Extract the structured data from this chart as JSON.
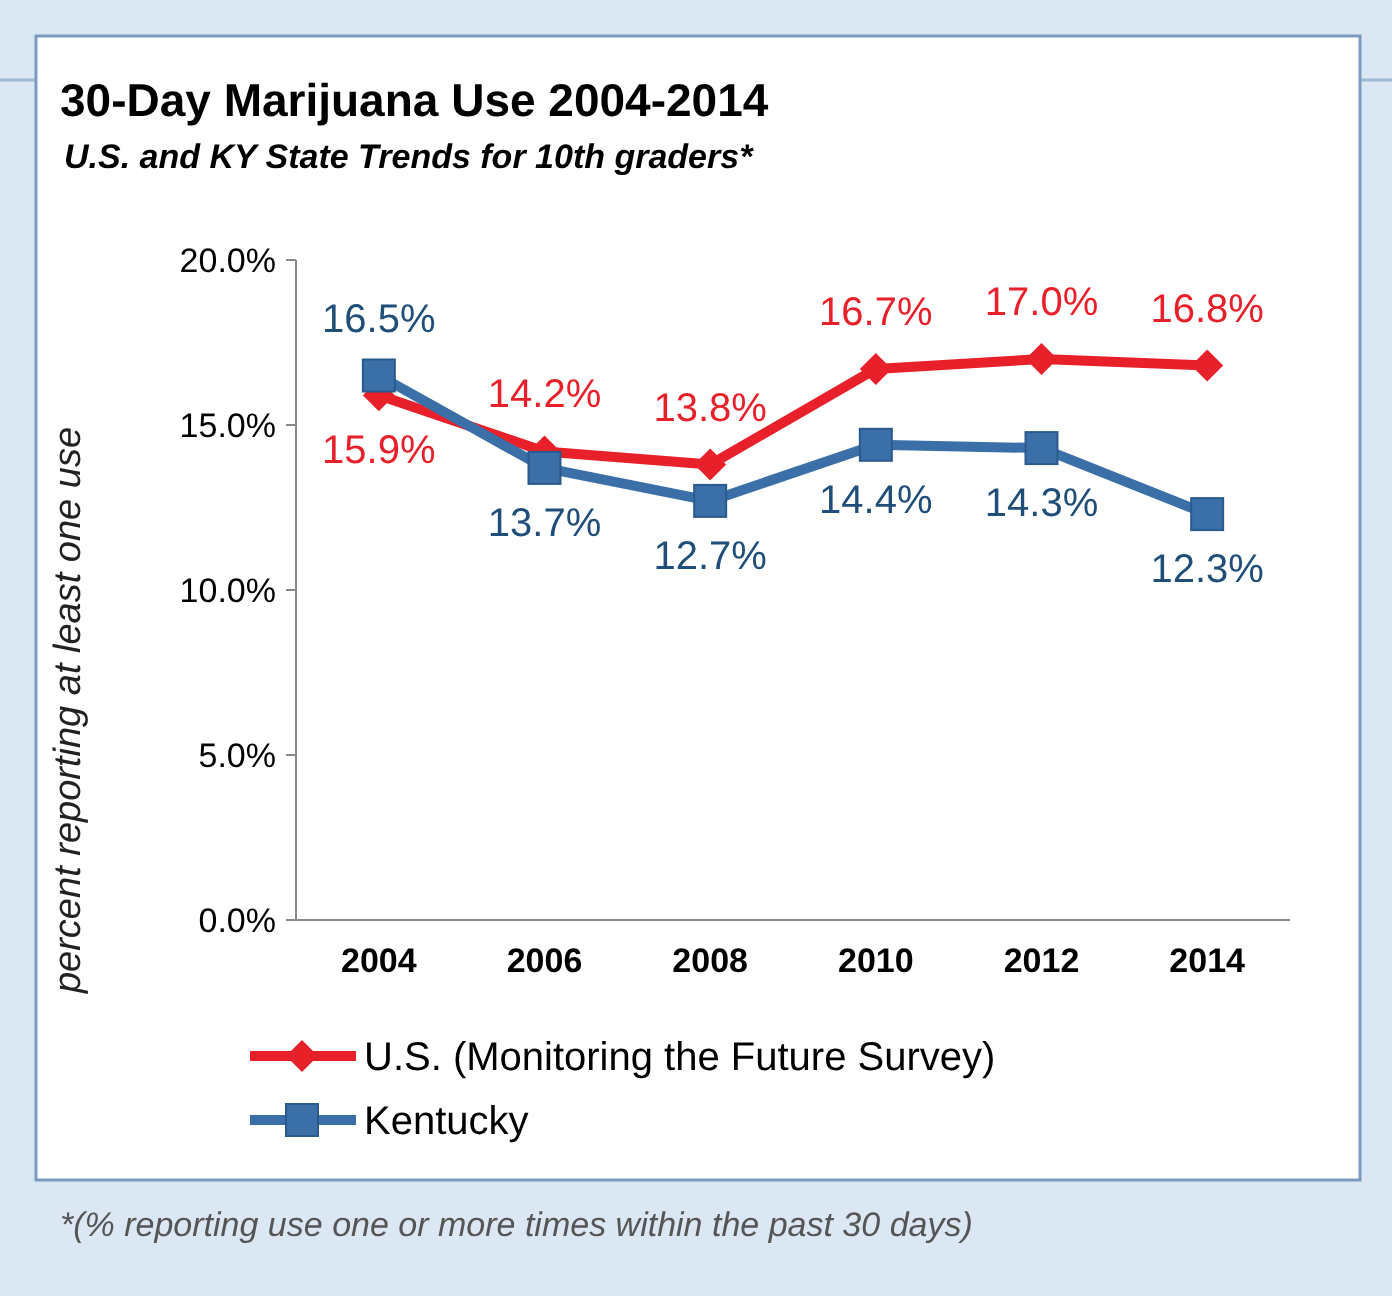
{
  "chart_data": {
    "type": "line",
    "title": "30-Day Marijuana Use 2004-2014",
    "subtitle": "U.S. and KY State Trends for 10th graders*",
    "ylabel": "percent reporting at least one use",
    "categories": [
      "2004",
      "2006",
      "2008",
      "2010",
      "2012",
      "2014"
    ],
    "series": [
      {
        "name": "U.S. (Monitoring the Future Survey)",
        "color": "#e8202a",
        "marker": "diamond",
        "values": [
          15.9,
          14.2,
          13.8,
          16.7,
          17.0,
          16.8
        ],
        "value_labels": [
          "15.9%",
          "14.2%",
          "13.8%",
          "16.7%",
          "17.0%",
          "16.8%"
        ]
      },
      {
        "name": "Kentucky",
        "color": "#3a6fa8",
        "marker": "square",
        "values": [
          16.5,
          13.7,
          12.7,
          14.4,
          14.3,
          12.3
        ],
        "value_labels": [
          "16.5%",
          "13.7%",
          "12.7%",
          "14.4%",
          "14.3%",
          "12.3%"
        ]
      }
    ],
    "ylim": [
      0,
      20
    ],
    "yticks": [
      {
        "value": 0,
        "label": "0.0%"
      },
      {
        "value": 5,
        "label": "5.0%"
      },
      {
        "value": 10,
        "label": "10.0%"
      },
      {
        "value": 15,
        "label": "15.0%"
      },
      {
        "value": 20,
        "label": "20.0%"
      }
    ],
    "legend": "bottom",
    "grid": false,
    "line_style": "solid",
    "annotations": [
      "*(% reporting use one or more times within the past 30 days)"
    ]
  }
}
